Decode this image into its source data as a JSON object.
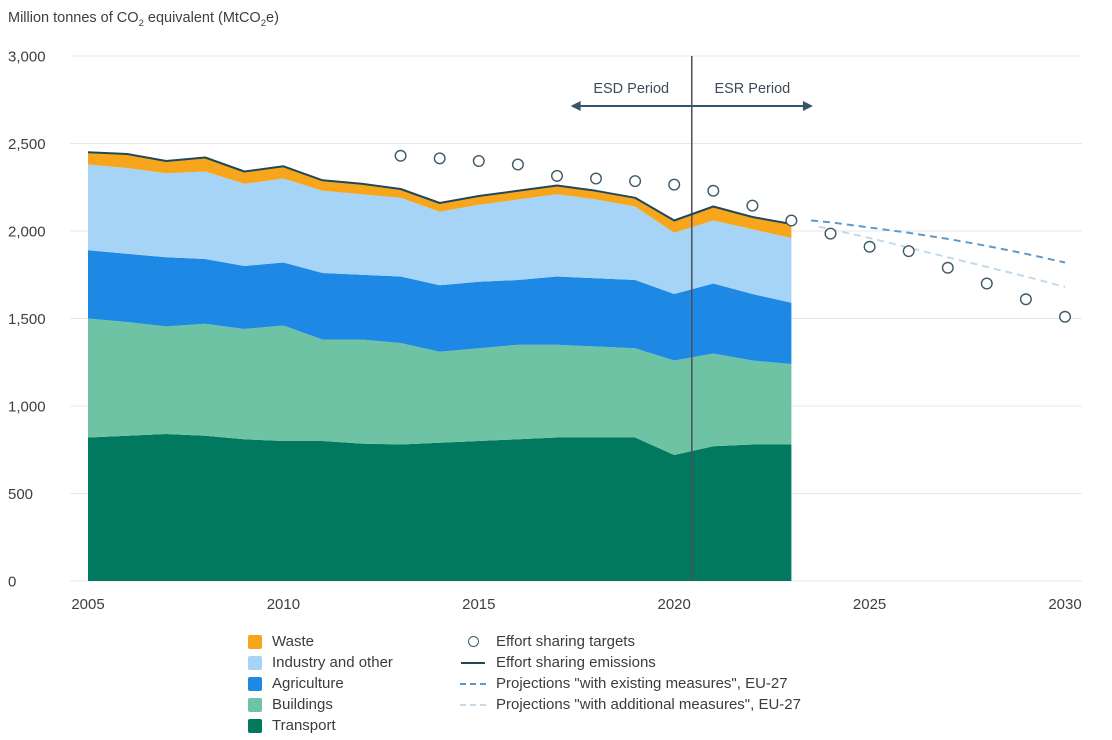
{
  "header": {
    "title_pre": "Million tonnes of CO",
    "title_sub1": "2",
    "title_mid": " equivalent (MtCO",
    "title_sub2": "2",
    "title_end": "e)"
  },
  "chart_data": {
    "type": "area",
    "title": "Million tonnes of CO2 equivalent (MtCO2e)",
    "stack_order": "bottom-to-top",
    "x_years": [
      2005,
      2006,
      2007,
      2008,
      2009,
      2010,
      2011,
      2012,
      2013,
      2014,
      2015,
      2016,
      2017,
      2018,
      2019,
      2020,
      2021,
      2022,
      2023
    ],
    "series": [
      {
        "name": "Transport",
        "color": "#00795F",
        "values": [
          820,
          830,
          840,
          830,
          810,
          800,
          800,
          785,
          780,
          790,
          800,
          810,
          820,
          820,
          820,
          720,
          770,
          780,
          780
        ]
      },
      {
        "name": "Buildings",
        "color": "#6EC3A4",
        "values": [
          680,
          650,
          615,
          640,
          630,
          660,
          580,
          595,
          580,
          520,
          530,
          540,
          530,
          520,
          510,
          540,
          530,
          480,
          460
        ]
      },
      {
        "name": "Agriculture",
        "color": "#1E88E5",
        "values": [
          390,
          390,
          395,
          370,
          360,
          360,
          380,
          370,
          380,
          380,
          380,
          370,
          390,
          390,
          390,
          380,
          400,
          380,
          350
        ]
      },
      {
        "name": "Industry and other",
        "color": "#A6D4F6",
        "values": [
          490,
          490,
          480,
          500,
          470,
          480,
          470,
          460,
          450,
          420,
          440,
          460,
          470,
          450,
          420,
          350,
          360,
          370,
          370
        ]
      },
      {
        "name": "Waste",
        "color": "#F7A61C",
        "values": [
          70,
          80,
          70,
          80,
          70,
          70,
          60,
          60,
          50,
          50,
          50,
          50,
          50,
          50,
          50,
          70,
          80,
          70,
          80
        ]
      }
    ],
    "emissions_line": {
      "name": "Effort sharing emissions",
      "color": "#20485C",
      "values": [
        2450,
        2440,
        2400,
        2420,
        2340,
        2370,
        2290,
        2270,
        2240,
        2160,
        2200,
        2230,
        2260,
        2230,
        2190,
        2060,
        2140,
        2080,
        2040
      ]
    },
    "targets": {
      "name": "Effort sharing targets",
      "color": "#3E5A68",
      "years": [
        2013,
        2014,
        2015,
        2016,
        2017,
        2018,
        2019,
        2020,
        2021,
        2022,
        2023,
        2024,
        2025,
        2026,
        2027,
        2028,
        2029,
        2030
      ],
      "values": [
        2430,
        2415,
        2400,
        2380,
        2315,
        2300,
        2285,
        2265,
        2230,
        2145,
        2060,
        1985,
        1910,
        1885,
        1790,
        1700,
        1610,
        1510
      ]
    },
    "projections": [
      {
        "name": "Projections \"with existing measures\", EU-27",
        "color": "#5E9AC9",
        "years": [
          2023.5,
          2024,
          2025,
          2026,
          2027,
          2028,
          2029,
          2030
        ],
        "values": [
          2060,
          2050,
          2020,
          1990,
          1955,
          1915,
          1870,
          1820
        ]
      },
      {
        "name": "Projections \"with additional measures\", EU-27",
        "color": "#C2DAEB",
        "years": [
          2023.7,
          2024,
          2025,
          2026,
          2027,
          2028,
          2029,
          2030
        ],
        "values": [
          2025,
          2010,
          1960,
          1905,
          1850,
          1795,
          1740,
          1680
        ]
      }
    ],
    "y_axis": {
      "tick_values": [
        0,
        500,
        1000,
        1500,
        2000,
        2500,
        3000
      ],
      "tick_labels": [
        "0",
        "500",
        "1,000",
        "1,500",
        "2,000",
        "2,500",
        "3,000"
      ],
      "range": [
        0,
        3000
      ]
    },
    "x_axis": {
      "tick_values": [
        2005,
        2010,
        2015,
        2020,
        2025,
        2030
      ],
      "tick_labels": [
        "2005",
        "2010",
        "2015",
        "2020",
        "2025",
        "2030"
      ],
      "range": [
        2005,
        2030
      ]
    },
    "annotations": {
      "esd_label": "ESD Period",
      "esr_label": "ESR Period",
      "divider_year": 2020.45,
      "arrow_span_years": [
        2017.35,
        2023.55
      ],
      "arrow_color": "#33566E",
      "divider_color": "#4E4D5C",
      "label_color": "#3E4C59"
    },
    "grid": "horizontal",
    "legend_position": "bottom"
  },
  "legend": {
    "left": [
      {
        "label": "Waste",
        "swatch": "square",
        "color": "#F7A61C"
      },
      {
        "label": "Industry and other",
        "swatch": "square",
        "color": "#A6D4F6"
      },
      {
        "label": "Agriculture",
        "swatch": "square",
        "color": "#1E88E5"
      },
      {
        "label": "Buildings",
        "swatch": "square",
        "color": "#6EC3A4"
      },
      {
        "label": "Transport",
        "swatch": "square",
        "color": "#00795F"
      }
    ],
    "right": [
      {
        "label": "Effort sharing targets",
        "swatch": "circle",
        "color": "#3E5A68"
      },
      {
        "label": "Effort sharing emissions",
        "swatch": "line",
        "color": "#20485C"
      },
      {
        "label": "Projections \"with existing measures\", EU-27",
        "swatch": "dashed",
        "color": "#5E9AC9"
      },
      {
        "label": "Projections \"with additional measures\", EU-27",
        "swatch": "dashed",
        "color": "#C2DAEB"
      }
    ]
  }
}
